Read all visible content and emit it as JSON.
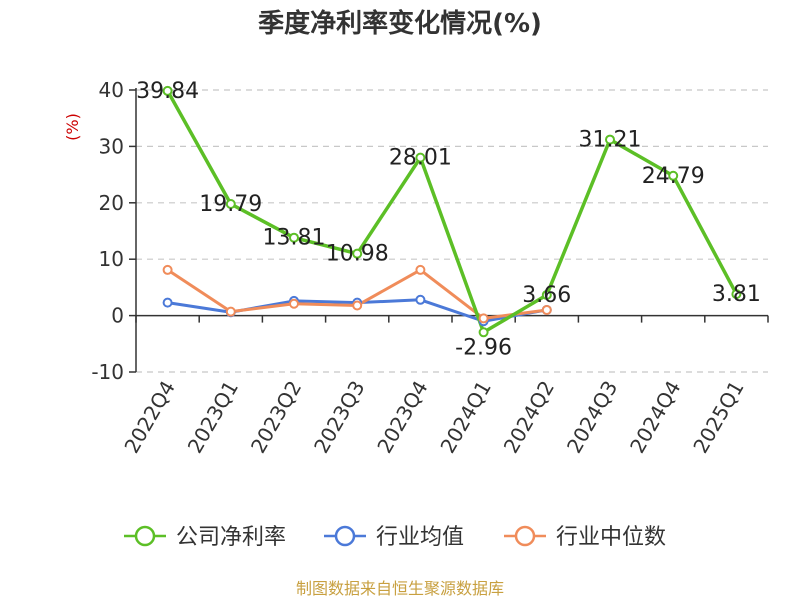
{
  "title": "季度净利率变化情况(%)",
  "source": "制图数据来自恒生聚源数据库",
  "colors": {
    "company": "#5cbf26",
    "industry_avg": "#4b79d8",
    "industry_median": "#f08c5a",
    "grid": "#c8c8c8",
    "axis": "#333333",
    "ylabel": "#cc0000",
    "source": "#c8a040"
  },
  "chart_data": {
    "type": "line",
    "title": "季度净利率变化情况(%)",
    "ylabel": "(%)",
    "xlabel": "",
    "ylim": [
      -10,
      40
    ],
    "yticks": [
      40,
      30,
      20,
      10,
      0,
      -10
    ],
    "grid": true,
    "legend_position": "bottom",
    "categories": [
      "2022Q4",
      "2023Q1",
      "2023Q2",
      "2023Q3",
      "2023Q4",
      "2024Q1",
      "2024Q2",
      "2024Q3",
      "2024Q4",
      "2025Q1"
    ],
    "series": [
      {
        "name": "公司净利率",
        "values": [
          39.84,
          19.79,
          13.81,
          10.98,
          28.01,
          -2.96,
          3.66,
          31.21,
          24.79,
          3.81
        ],
        "labels": [
          "39.84",
          "19.79",
          "13.81",
          "10.98",
          "28.01",
          "-2.96",
          "3.66",
          "31.21",
          "24.79",
          "3.81"
        ]
      },
      {
        "name": "行业均值",
        "values": [
          2.3,
          0.6,
          2.6,
          2.3,
          2.8,
          -1.0,
          1.0,
          null,
          null,
          null
        ]
      },
      {
        "name": "行业中位数",
        "values": [
          8.1,
          0.7,
          2.1,
          1.8,
          8.1,
          -0.5,
          1.0,
          null,
          null,
          null
        ]
      }
    ]
  }
}
